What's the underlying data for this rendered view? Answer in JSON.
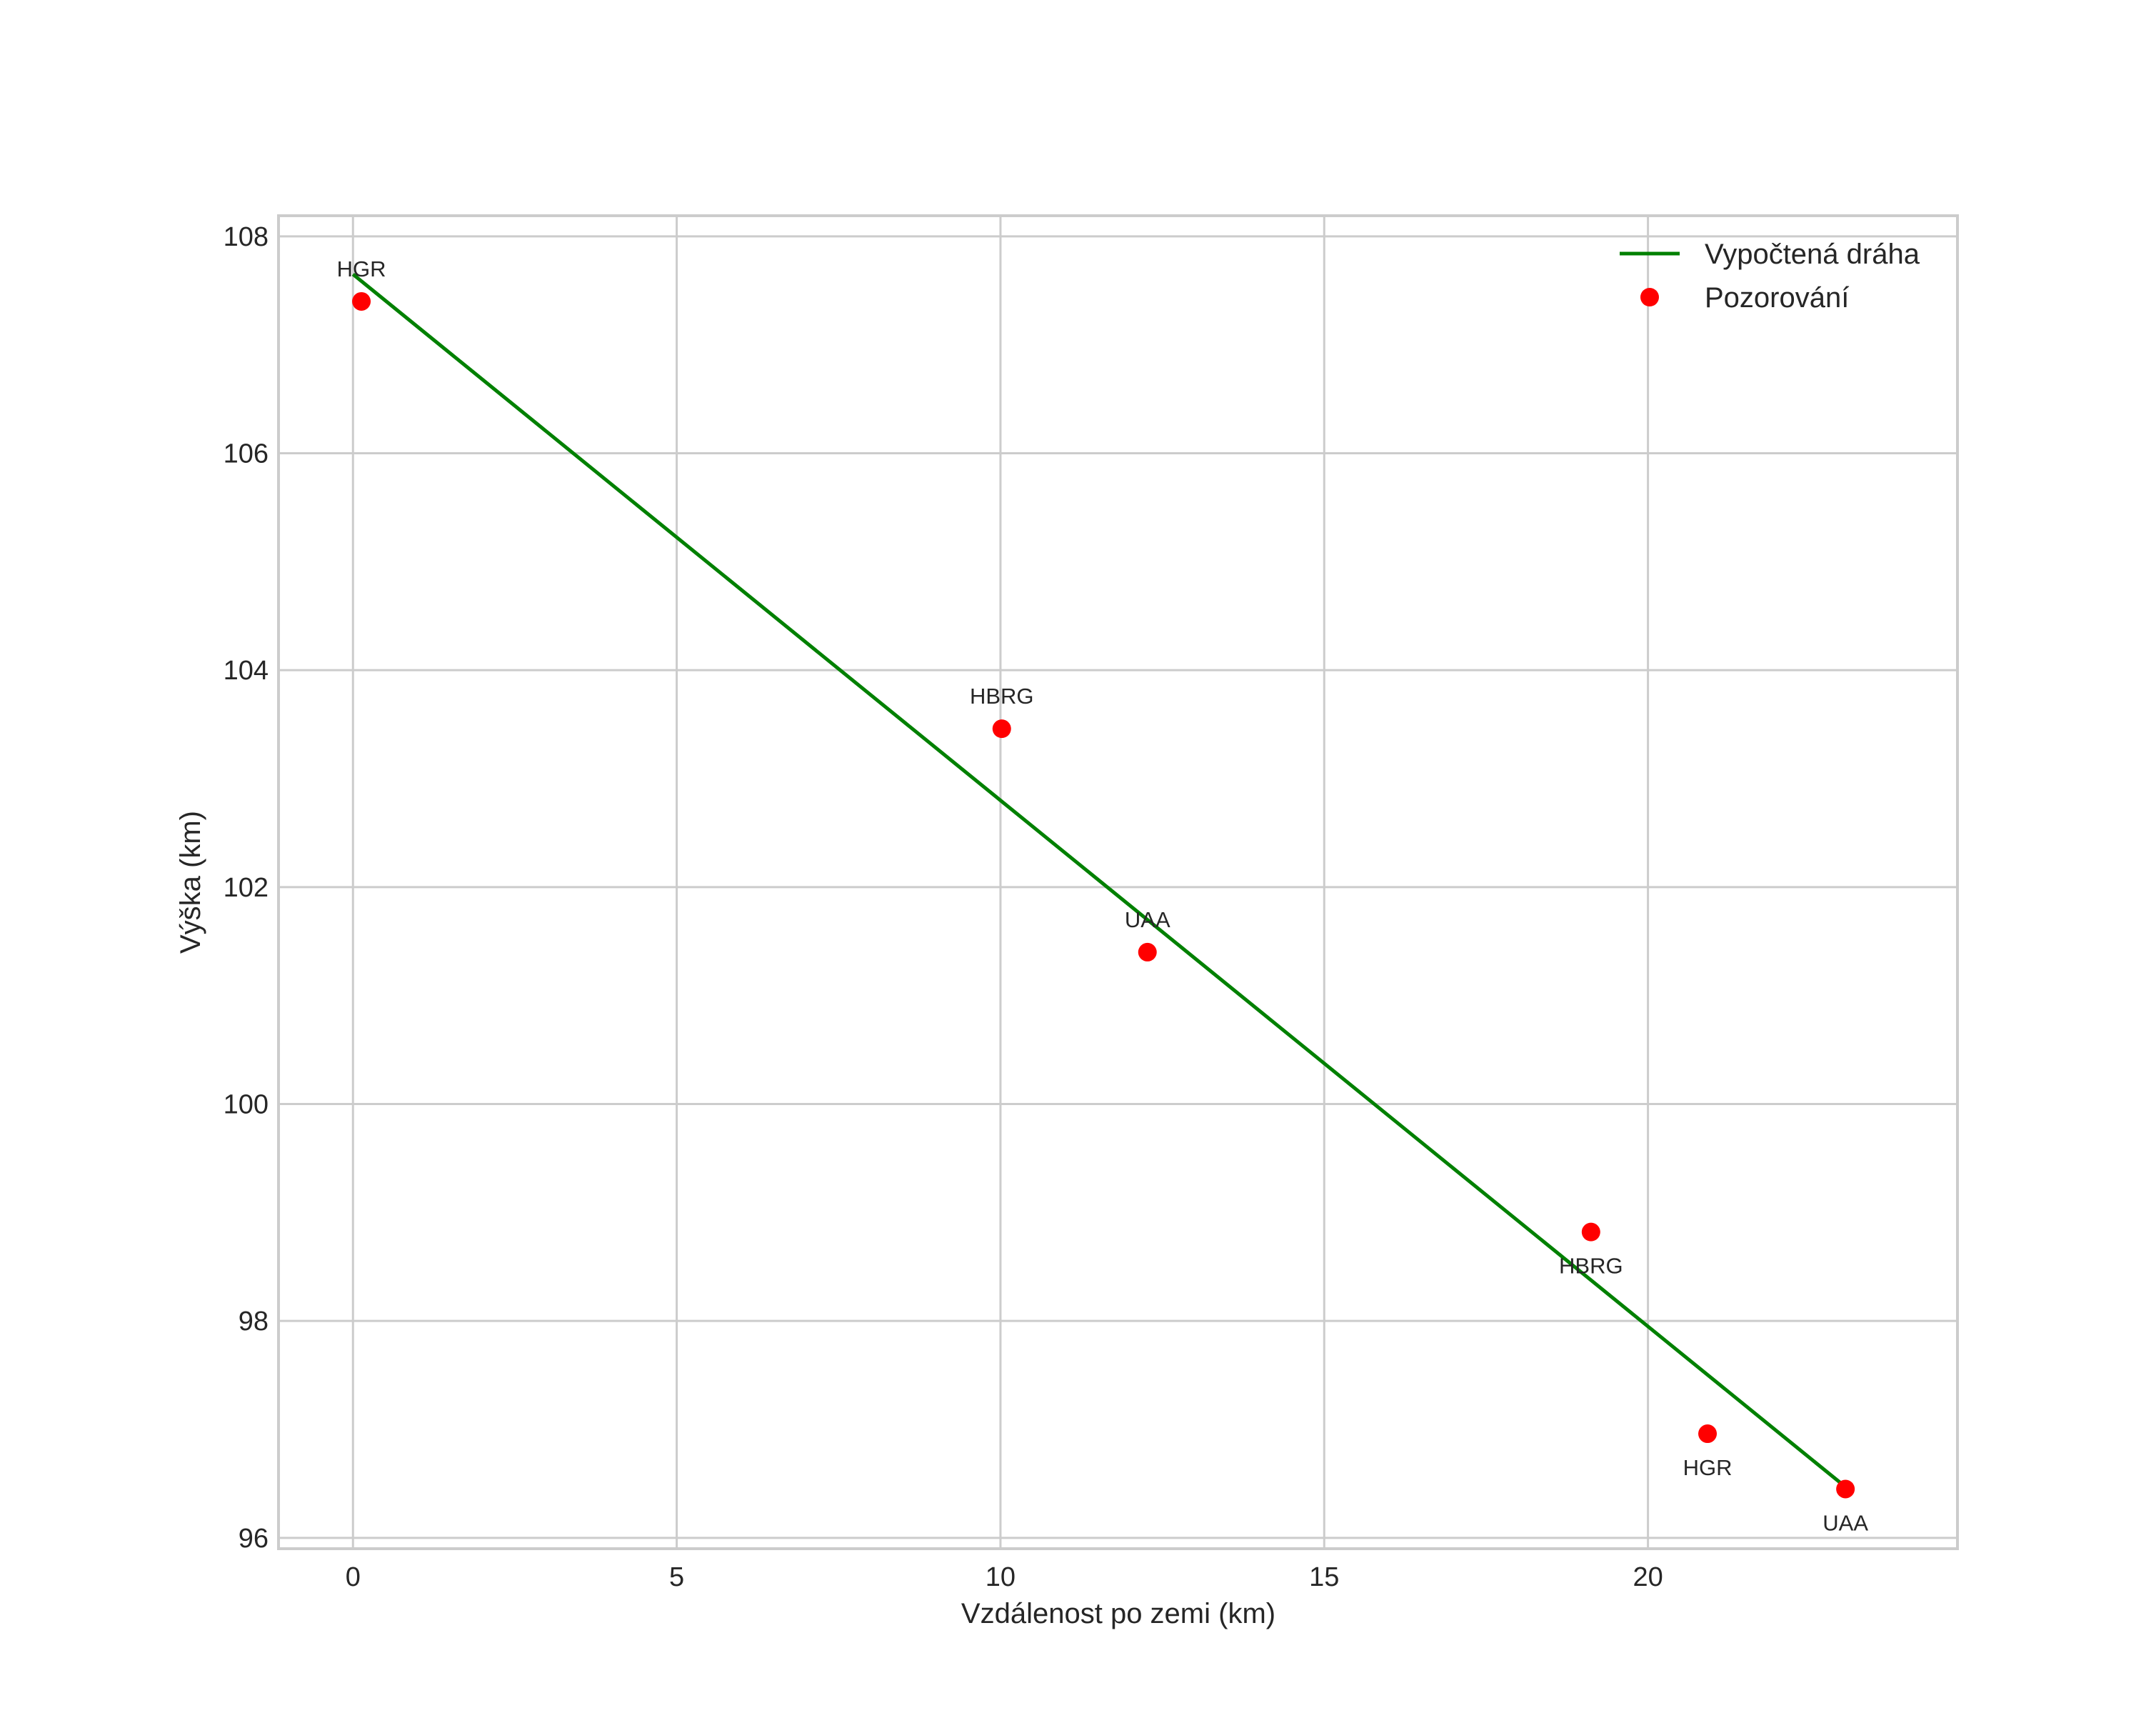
{
  "chart_data": {
    "type": "line+scatter",
    "title": "",
    "xlabel": "Vzdálenost po zemi (km)",
    "ylabel": "Výška (km)",
    "xlim": [
      -1.15,
      24.78
    ],
    "ylim": [
      95.9,
      108.19
    ],
    "xticks": [
      0,
      5,
      10,
      15,
      20
    ],
    "yticks": [
      96,
      98,
      100,
      102,
      104,
      106,
      108
    ],
    "grid": true,
    "legend_position": "top-right",
    "series": [
      {
        "name": "Vypočtená dráha",
        "kind": "line",
        "color": "#008000",
        "x": [
          0.0,
          23.05
        ],
        "y": [
          107.65,
          96.47
        ]
      },
      {
        "name": "Pozorování",
        "kind": "scatter",
        "color": "#ff0000",
        "points": [
          {
            "x": 0.13,
            "y": 107.4,
            "label": "HGR",
            "label_pos": "above"
          },
          {
            "x": 10.02,
            "y": 103.46,
            "label": "HBRG",
            "label_pos": "above"
          },
          {
            "x": 12.27,
            "y": 101.4,
            "label": "UAA",
            "label_pos": "above"
          },
          {
            "x": 19.12,
            "y": 98.82,
            "label": "HBRG",
            "label_pos": "below"
          },
          {
            "x": 20.92,
            "y": 96.96,
            "label": "HGR",
            "label_pos": "below"
          },
          {
            "x": 23.05,
            "y": 96.45,
            "label": "UAA",
            "label_pos": "below"
          }
        ]
      }
    ]
  }
}
